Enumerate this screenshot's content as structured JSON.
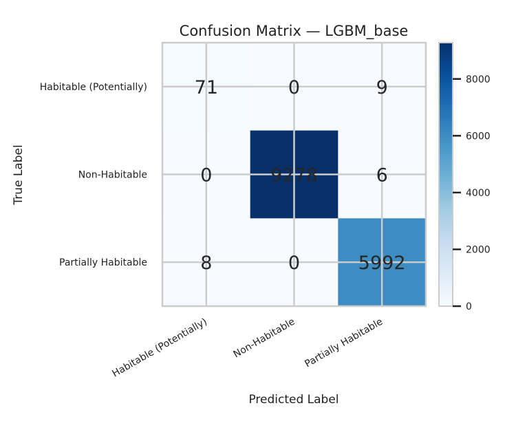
{
  "chart_data": {
    "type": "heatmap",
    "title": "Confusion Matrix — LGBM_base",
    "xlabel": "Predicted Label",
    "ylabel": "True Label",
    "x_categories": [
      "Habitable (Potentially)",
      "Non-Habitable",
      "Partially Habitable"
    ],
    "y_categories": [
      "Habitable (Potentially)",
      "Non-Habitable",
      "Partially Habitable"
    ],
    "values": [
      [
        71,
        0,
        9
      ],
      [
        0,
        9278,
        6
      ],
      [
        8,
        0,
        5992
      ]
    ],
    "colormap": "Blues",
    "colorbar": {
      "ticks": [
        0,
        2000,
        4000,
        6000,
        8000
      ],
      "range": [
        0,
        9278
      ]
    },
    "grid": true
  }
}
